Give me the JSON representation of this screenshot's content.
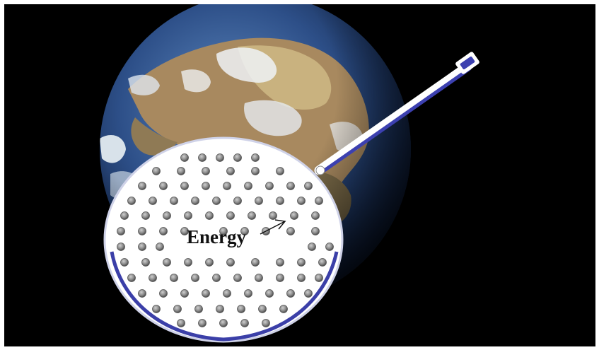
{
  "figure": {
    "label_text": "Energy",
    "subject_icon": "earth-globe-icon",
    "disc_icon": "perforated-plate-icon",
    "rod_icon": "rod-handle-icon",
    "arrow_icon": "pointer-arrow-icon",
    "colors": {
      "background": "#000000",
      "frame": "#ffffff",
      "ocean": "#2b4f86",
      "land": "#a88a62",
      "clouds": "#e9eef3",
      "disc_fill": "#ffffff",
      "disc_rim": "#3b3fa8",
      "hole": "#8a8a8a",
      "rod": "#3c40b0"
    }
  }
}
